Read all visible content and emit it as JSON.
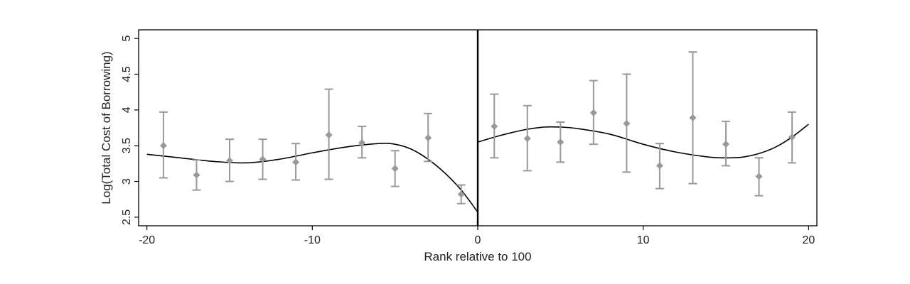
{
  "chart_data": {
    "type": "scatter",
    "xlabel": "Rank relative to 100",
    "ylabel": "Log(Total Cost of Borrowing)",
    "xlim": [
      -20.5,
      20.5
    ],
    "ylim": [
      2.38,
      5.12
    ],
    "x_ticks": [
      -20,
      -10,
      0,
      10,
      20
    ],
    "x_tick_labels": [
      "-20",
      "-10",
      "0",
      "10",
      "20"
    ],
    "y_ticks": [
      2.5,
      3,
      3.5,
      4,
      4.5,
      5
    ],
    "y_tick_labels": [
      "2.5",
      "3",
      "3.5",
      "4",
      "4.5",
      "5"
    ],
    "grid": false,
    "cutoff_x": 0,
    "colors": {
      "points": "#999999",
      "fit": "#000000",
      "frame": "#000000"
    },
    "points": [
      {
        "x": -19,
        "y": 3.5,
        "lo": 3.05,
        "hi": 3.97
      },
      {
        "x": -17,
        "y": 3.09,
        "lo": 2.88,
        "hi": 3.3
      },
      {
        "x": -15,
        "y": 3.29,
        "lo": 3.0,
        "hi": 3.59
      },
      {
        "x": -13,
        "y": 3.31,
        "lo": 3.03,
        "hi": 3.59
      },
      {
        "x": -11,
        "y": 3.27,
        "lo": 3.02,
        "hi": 3.53
      },
      {
        "x": -9,
        "y": 3.65,
        "lo": 3.03,
        "hi": 4.29
      },
      {
        "x": -7,
        "y": 3.54,
        "lo": 3.33,
        "hi": 3.77
      },
      {
        "x": -5,
        "y": 3.18,
        "lo": 2.93,
        "hi": 3.43
      },
      {
        "x": -3,
        "y": 3.61,
        "lo": 3.28,
        "hi": 3.95
      },
      {
        "x": -1,
        "y": 2.82,
        "lo": 2.69,
        "hi": 2.95
      },
      {
        "x": 1,
        "y": 3.77,
        "lo": 3.33,
        "hi": 4.22
      },
      {
        "x": 3,
        "y": 3.6,
        "lo": 3.15,
        "hi": 4.06
      },
      {
        "x": 5,
        "y": 3.55,
        "lo": 3.27,
        "hi": 3.83
      },
      {
        "x": 7,
        "y": 3.96,
        "lo": 3.52,
        "hi": 4.41
      },
      {
        "x": 9,
        "y": 3.81,
        "lo": 3.13,
        "hi": 4.5
      },
      {
        "x": 11,
        "y": 3.22,
        "lo": 2.9,
        "hi": 3.53
      },
      {
        "x": 13,
        "y": 3.89,
        "lo": 2.97,
        "hi": 4.81
      },
      {
        "x": 15,
        "y": 3.52,
        "lo": 3.22,
        "hi": 3.84
      },
      {
        "x": 17,
        "y": 3.07,
        "lo": 2.8,
        "hi": 3.33
      },
      {
        "x": 19,
        "y": 3.62,
        "lo": 3.26,
        "hi": 3.97
      }
    ],
    "fit_left": [
      {
        "x": -20,
        "y": 3.38
      },
      {
        "x": -18,
        "y": 3.33
      },
      {
        "x": -16,
        "y": 3.28
      },
      {
        "x": -14,
        "y": 3.26
      },
      {
        "x": -12,
        "y": 3.31
      },
      {
        "x": -10,
        "y": 3.4
      },
      {
        "x": -8,
        "y": 3.48
      },
      {
        "x": -6,
        "y": 3.53
      },
      {
        "x": -5,
        "y": 3.52
      },
      {
        "x": -4,
        "y": 3.45
      },
      {
        "x": -3,
        "y": 3.31
      },
      {
        "x": -2,
        "y": 3.12
      },
      {
        "x": -1,
        "y": 2.88
      },
      {
        "x": 0,
        "y": 2.57
      }
    ],
    "fit_right": [
      {
        "x": 0,
        "y": 3.55
      },
      {
        "x": 1,
        "y": 3.62
      },
      {
        "x": 2,
        "y": 3.68
      },
      {
        "x": 3,
        "y": 3.73
      },
      {
        "x": 4,
        "y": 3.76
      },
      {
        "x": 5,
        "y": 3.76
      },
      {
        "x": 6,
        "y": 3.74
      },
      {
        "x": 8,
        "y": 3.66
      },
      {
        "x": 10,
        "y": 3.52
      },
      {
        "x": 12,
        "y": 3.41
      },
      {
        "x": 14,
        "y": 3.34
      },
      {
        "x": 15,
        "y": 3.33
      },
      {
        "x": 16,
        "y": 3.34
      },
      {
        "x": 17,
        "y": 3.39
      },
      {
        "x": 18,
        "y": 3.48
      },
      {
        "x": 19,
        "y": 3.62
      },
      {
        "x": 20,
        "y": 3.8
      }
    ]
  }
}
